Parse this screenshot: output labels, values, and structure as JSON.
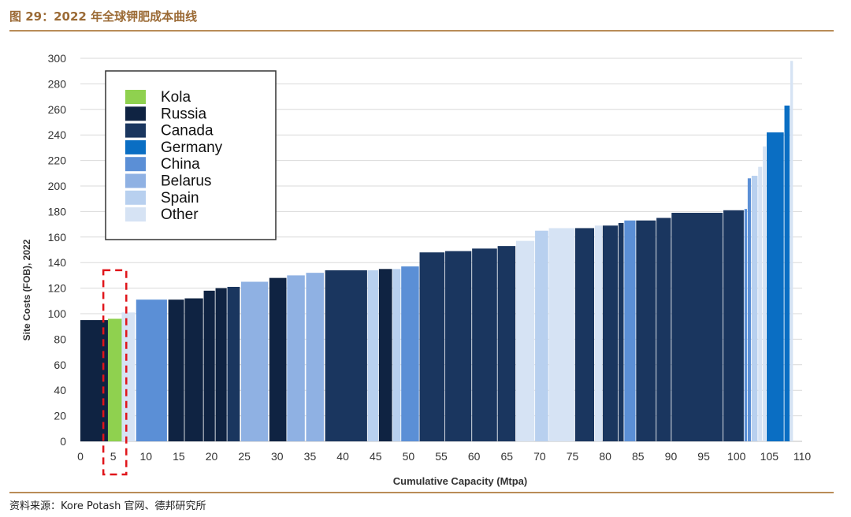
{
  "figure_title": "图 29：2022 年全球钾肥成本曲线",
  "source_text": "资料来源：Kore Potash 官网、德邦研究所",
  "colors": {
    "Kola": "#8fd14f",
    "Russia": "#0f2342",
    "Canada": "#1a365f",
    "Germany": "#0a6ec3",
    "China": "#5b8fd6",
    "Belarus": "#8fb1e3",
    "Spain": "#b8d0ef",
    "Other": "#d6e3f4"
  },
  "chart_data": {
    "type": "bar",
    "subtype": "cost-curve (variable width bars)",
    "xlabel": "Cumulative Capacity (Mtpa)",
    "ylabel": "Site Costs (FOB), 2022",
    "xlim": [
      0,
      110
    ],
    "ylim": [
      0,
      300
    ],
    "x_ticks": [
      0,
      5,
      10,
      15,
      20,
      25,
      30,
      35,
      40,
      45,
      50,
      55,
      60,
      65,
      70,
      75,
      80,
      85,
      90,
      95,
      100,
      105,
      110
    ],
    "y_ticks": [
      0,
      20,
      40,
      60,
      80,
      100,
      120,
      140,
      160,
      180,
      200,
      220,
      240,
      260,
      280,
      300
    ],
    "grid": "horizontal",
    "legend_position": "top-left",
    "legend": [
      "Kola",
      "Russia",
      "Canada",
      "Germany",
      "China",
      "Belarus",
      "Spain",
      "Other"
    ],
    "highlight": {
      "label": "Kola",
      "x_range": [
        3.5,
        7
      ],
      "style": "red dashed box"
    },
    "bars": [
      {
        "x0": 0,
        "x1": 4.2,
        "value": 95,
        "country": "Russia"
      },
      {
        "x0": 4.2,
        "x1": 6.3,
        "value": 96,
        "country": "Kola"
      },
      {
        "x0": 6.3,
        "x1": 8.3,
        "value": 101,
        "country": "Other"
      },
      {
        "x0": 8.5,
        "x1": 13.2,
        "value": 111,
        "country": "China"
      },
      {
        "x0": 13.4,
        "x1": 15.8,
        "value": 111,
        "country": "Russia"
      },
      {
        "x0": 15.9,
        "x1": 18.7,
        "value": 112,
        "country": "Russia"
      },
      {
        "x0": 18.8,
        "x1": 20.5,
        "value": 118,
        "country": "Russia"
      },
      {
        "x0": 20.6,
        "x1": 22.3,
        "value": 120,
        "country": "Russia"
      },
      {
        "x0": 22.4,
        "x1": 24.3,
        "value": 121,
        "country": "Canada"
      },
      {
        "x0": 24.5,
        "x1": 28.6,
        "value": 125,
        "country": "Belarus"
      },
      {
        "x0": 28.8,
        "x1": 31.4,
        "value": 128,
        "country": "Russia"
      },
      {
        "x0": 31.5,
        "x1": 34.2,
        "value": 130,
        "country": "Belarus"
      },
      {
        "x0": 34.4,
        "x1": 37.1,
        "value": 132,
        "country": "Belarus"
      },
      {
        "x0": 37.3,
        "x1": 43.7,
        "value": 134,
        "country": "Canada"
      },
      {
        "x0": 43.8,
        "x1": 45.4,
        "value": 134,
        "country": "Spain"
      },
      {
        "x0": 45.5,
        "x1": 47.5,
        "value": 135,
        "country": "Russia"
      },
      {
        "x0": 47.6,
        "x1": 48.8,
        "value": 135,
        "country": "Spain"
      },
      {
        "x0": 48.9,
        "x1": 51.6,
        "value": 137,
        "country": "China"
      },
      {
        "x0": 51.7,
        "x1": 55.5,
        "value": 148,
        "country": "Canada"
      },
      {
        "x0": 55.6,
        "x1": 59.6,
        "value": 149,
        "country": "Canada"
      },
      {
        "x0": 59.7,
        "x1": 63.5,
        "value": 151,
        "country": "Canada"
      },
      {
        "x0": 63.6,
        "x1": 66.3,
        "value": 153,
        "country": "Canada"
      },
      {
        "x0": 66.4,
        "x1": 69.2,
        "value": 157,
        "country": "Other"
      },
      {
        "x0": 69.3,
        "x1": 71.3,
        "value": 165,
        "country": "Spain"
      },
      {
        "x0": 71.4,
        "x1": 75.3,
        "value": 167,
        "country": "Other"
      },
      {
        "x0": 75.4,
        "x1": 78.3,
        "value": 167,
        "country": "Canada"
      },
      {
        "x0": 78.4,
        "x1": 79.5,
        "value": 169,
        "country": "Other"
      },
      {
        "x0": 79.6,
        "x1": 81.9,
        "value": 169,
        "country": "Canada"
      },
      {
        "x0": 82.0,
        "x1": 82.8,
        "value": 171,
        "country": "Canada"
      },
      {
        "x0": 82.9,
        "x1": 84.6,
        "value": 173,
        "country": "China"
      },
      {
        "x0": 84.7,
        "x1": 87.7,
        "value": 173,
        "country": "Canada"
      },
      {
        "x0": 87.8,
        "x1": 90.0,
        "value": 175,
        "country": "Canada"
      },
      {
        "x0": 90.1,
        "x1": 97.9,
        "value": 179,
        "country": "Canada"
      },
      {
        "x0": 98.0,
        "x1": 101.1,
        "value": 181,
        "country": "Canada"
      },
      {
        "x0": 101.2,
        "x1": 101.6,
        "value": 182,
        "country": "China"
      },
      {
        "x0": 101.7,
        "x1": 102.2,
        "value": 206,
        "country": "China"
      },
      {
        "x0": 102.3,
        "x1": 103.2,
        "value": 208,
        "country": "Spain"
      },
      {
        "x0": 103.3,
        "x1": 103.9,
        "value": 215,
        "country": "Other"
      },
      {
        "x0": 104.0,
        "x1": 104.5,
        "value": 231,
        "country": "Other"
      },
      {
        "x0": 104.6,
        "x1": 107.2,
        "value": 242,
        "country": "Germany"
      },
      {
        "x0": 107.3,
        "x1": 108.1,
        "value": 263,
        "country": "Germany"
      },
      {
        "x0": 108.2,
        "x1": 108.6,
        "value": 298,
        "country": "Other"
      }
    ]
  }
}
